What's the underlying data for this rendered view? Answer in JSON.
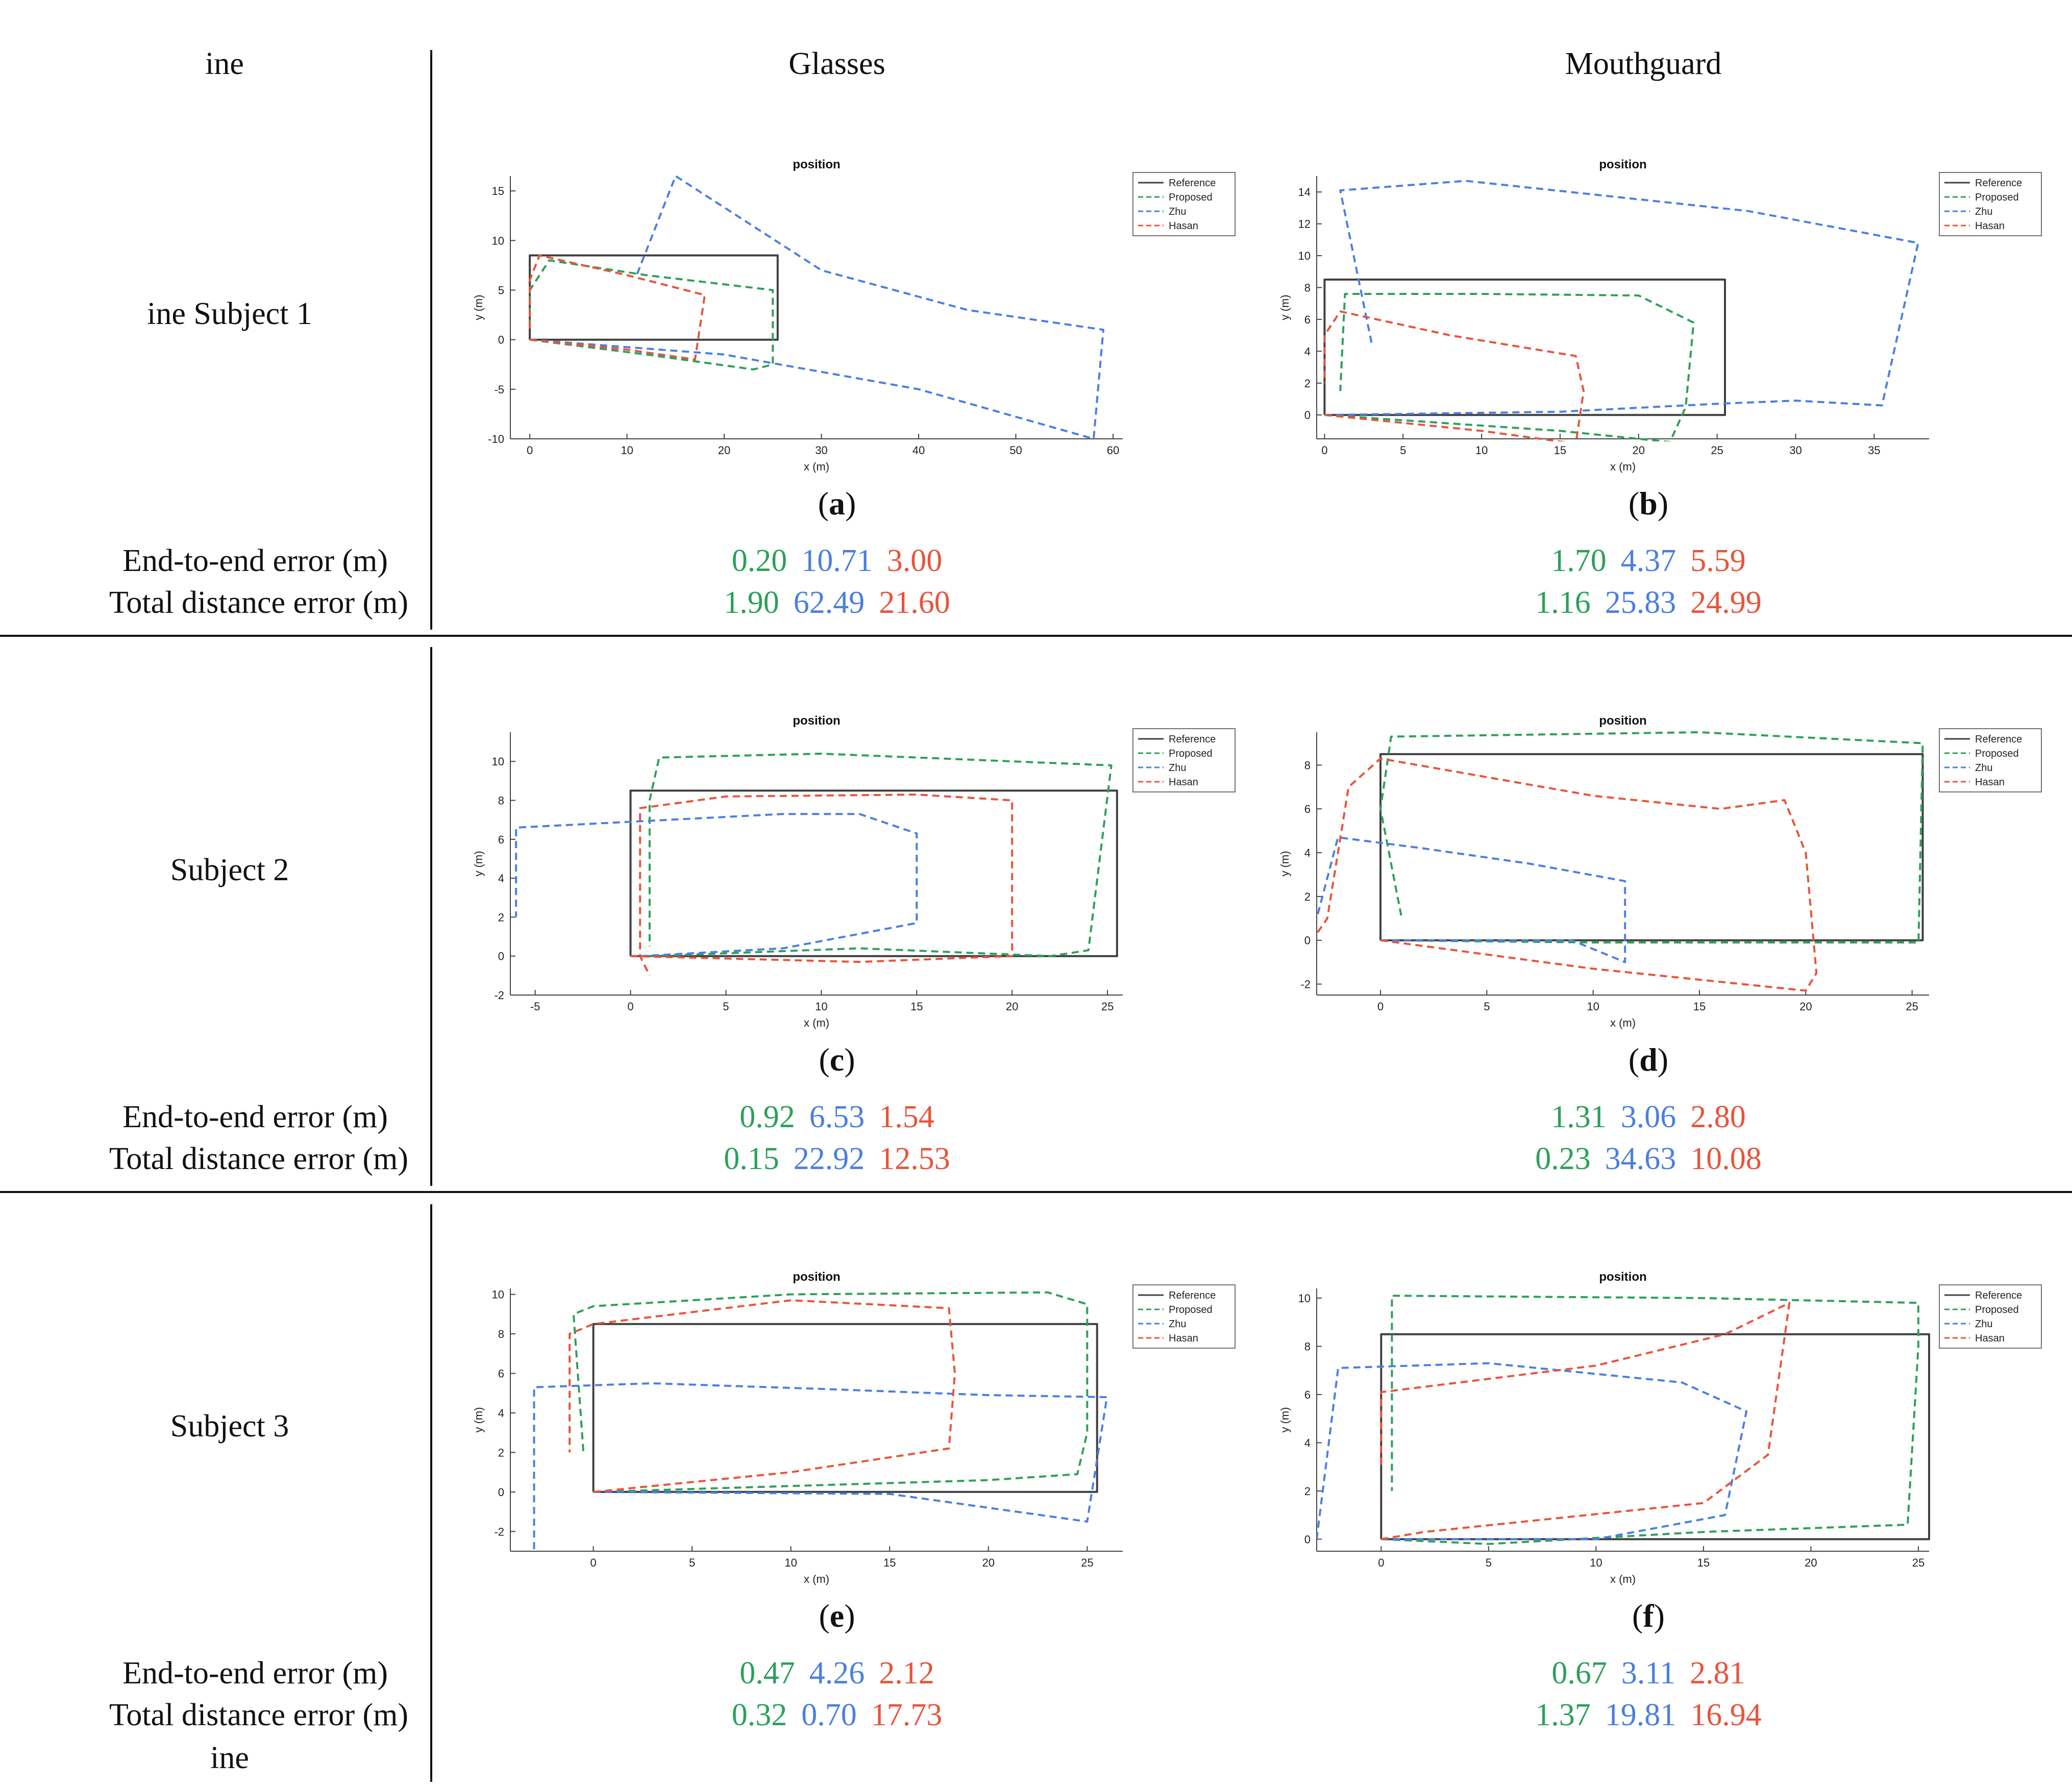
{
  "header": {
    "left": "ine",
    "col1": "Glasses",
    "col2": "Mouthguard"
  },
  "rows": [
    {
      "label": "ine Subject 1"
    },
    {
      "label": "Subject 2"
    },
    {
      "label": "Subject 3"
    }
  ],
  "footer": "ine",
  "metrics": {
    "end_to_end": "End-to-end error (m)",
    "total": "Total distance error (m)"
  },
  "colors": {
    "reference": "#404040",
    "proposed": "#2ca05a",
    "zhu": "#4a7fe0",
    "hasan": "#e8543a"
  },
  "panels": [
    {
      "caption_letter": "a",
      "errors": {
        "e2e": [
          "0.20",
          "10.71",
          "3.00"
        ],
        "total": [
          "1.90",
          "62.49",
          "21.60"
        ]
      }
    },
    {
      "caption_letter": "b",
      "errors": {
        "e2e": [
          "1.70",
          "4.37",
          "5.59"
        ],
        "total": [
          "1.16",
          "25.83",
          "24.99"
        ]
      }
    },
    {
      "caption_letter": "c",
      "errors": {
        "e2e": [
          "0.92",
          "6.53",
          "1.54"
        ],
        "total": [
          "0.15",
          "22.92",
          "12.53"
        ]
      }
    },
    {
      "caption_letter": "d",
      "errors": {
        "e2e": [
          "1.31",
          "3.06",
          "2.80"
        ],
        "total": [
          "0.23",
          "34.63",
          "10.08"
        ]
      }
    },
    {
      "caption_letter": "e",
      "errors": {
        "e2e": [
          "0.47",
          "4.26",
          "2.12"
        ],
        "total": [
          "0.32",
          "0.70",
          "17.73"
        ]
      }
    },
    {
      "caption_letter": "f",
      "errors": {
        "e2e": [
          "0.67",
          "3.11",
          "2.81"
        ],
        "total": [
          "1.37",
          "19.81",
          "16.94"
        ]
      }
    }
  ],
  "chart_data": [
    {
      "type": "line",
      "title": "position",
      "xlabel": "x (m)",
      "ylabel": "y (m)",
      "xlim": [
        -2,
        61
      ],
      "ylim": [
        -10,
        16.5
      ],
      "xticks": [
        0,
        10,
        20,
        30,
        40,
        50,
        60
      ],
      "yticks": [
        -10,
        -5,
        0,
        5,
        10,
        15
      ],
      "legend": "top-right",
      "series": [
        {
          "name": "Reference",
          "style": "solid",
          "points": [
            [
              0,
              0
            ],
            [
              25.5,
              0
            ],
            [
              25.5,
              8.5
            ],
            [
              0,
              8.5
            ],
            [
              0,
              0
            ]
          ]
        },
        {
          "name": "Proposed",
          "style": "dashed",
          "points": [
            [
              0,
              0
            ],
            [
              12,
              -1.5
            ],
            [
              23,
              -3
            ],
            [
              25,
              -2.5
            ],
            [
              25,
              5
            ],
            [
              12,
              6.5
            ],
            [
              2,
              8
            ],
            [
              0,
              5
            ],
            [
              0,
              1
            ]
          ]
        },
        {
          "name": "Zhu",
          "style": "dashed",
          "points": [
            [
              0,
              0
            ],
            [
              20,
              -1.5
            ],
            [
              40,
              -5
            ],
            [
              58,
              -10
            ],
            [
              59,
              1
            ],
            [
              45,
              3
            ],
            [
              30,
              7
            ],
            [
              15,
              16.5
            ],
            [
              11,
              6.5
            ]
          ]
        },
        {
          "name": "Hasan",
          "style": "dashed",
          "points": [
            [
              0,
              0
            ],
            [
              10,
              -1
            ],
            [
              17,
              -2
            ],
            [
              18,
              4.5
            ],
            [
              10,
              6.5
            ],
            [
              1,
              8.5
            ],
            [
              0,
              6
            ],
            [
              0,
              1
            ]
          ]
        }
      ]
    },
    {
      "type": "line",
      "title": "position",
      "xlabel": "x (m)",
      "ylabel": "y (m)",
      "xlim": [
        -0.5,
        38.5
      ],
      "ylim": [
        -1.5,
        15
      ],
      "xticks": [
        0,
        5,
        10,
        15,
        20,
        25,
        30,
        35
      ],
      "yticks": [
        0,
        2,
        4,
        6,
        8,
        10,
        12,
        14
      ],
      "legend": "top-right",
      "series": [
        {
          "name": "Reference",
          "style": "solid",
          "points": [
            [
              0,
              0
            ],
            [
              25.5,
              0
            ],
            [
              25.5,
              8.5
            ],
            [
              0,
              8.5
            ],
            [
              0,
              0
            ]
          ]
        },
        {
          "name": "Proposed",
          "style": "dashed",
          "points": [
            [
              0,
              0
            ],
            [
              15,
              -1
            ],
            [
              22,
              -1.7
            ],
            [
              23,
              0.5
            ],
            [
              23.5,
              5.8
            ],
            [
              20,
              7.5
            ],
            [
              10,
              7.6
            ],
            [
              1.3,
              7.6
            ],
            [
              1,
              1.5
            ]
          ]
        },
        {
          "name": "Zhu",
          "style": "dashed",
          "points": [
            [
              0,
              0
            ],
            [
              15,
              0.2
            ],
            [
              25,
              0.7
            ],
            [
              30,
              0.9
            ],
            [
              35.5,
              0.6
            ],
            [
              37.8,
              10.8
            ],
            [
              27,
              12.8
            ],
            [
              9,
              14.7
            ],
            [
              1,
              14.1
            ],
            [
              3,
              4.5
            ]
          ]
        },
        {
          "name": "Hasan",
          "style": "dashed",
          "points": [
            [
              0,
              0
            ],
            [
              10,
              -1
            ],
            [
              16,
              -1.8
            ],
            [
              16.5,
              1.5
            ],
            [
              16,
              3.7
            ],
            [
              8,
              5
            ],
            [
              1,
              6.5
            ],
            [
              0,
              5
            ],
            [
              0,
              2
            ]
          ]
        }
      ]
    },
    {
      "type": "line",
      "title": "position",
      "xlabel": "x (m)",
      "ylabel": "y (m)",
      "xlim": [
        -6.3,
        25.8
      ],
      "ylim": [
        -2,
        11.5
      ],
      "xticks": [
        -5,
        0,
        5,
        10,
        15,
        20,
        25
      ],
      "yticks": [
        -2,
        0,
        2,
        4,
        6,
        8,
        10
      ],
      "legend": "top-right",
      "series": [
        {
          "name": "Reference",
          "style": "solid",
          "points": [
            [
              0,
              0
            ],
            [
              25.5,
              0
            ],
            [
              25.5,
              8.5
            ],
            [
              0,
              8.5
            ],
            [
              0,
              0
            ]
          ]
        },
        {
          "name": "Proposed",
          "style": "dashed",
          "points": [
            [
              1,
              0
            ],
            [
              12,
              0.4
            ],
            [
              22,
              0
            ],
            [
              24,
              0.3
            ],
            [
              25.2,
              9.8
            ],
            [
              10,
              10.4
            ],
            [
              1.5,
              10.2
            ],
            [
              1,
              8
            ],
            [
              1,
              0.5
            ]
          ]
        },
        {
          "name": "Zhu",
          "style": "dashed",
          "points": [
            [
              0.5,
              0
            ],
            [
              8,
              0.4
            ],
            [
              15,
              1.7
            ],
            [
              15,
              6.3
            ],
            [
              12,
              7.3
            ],
            [
              8,
              7.3
            ],
            [
              -6,
              6.6
            ],
            [
              -6,
              2
            ]
          ]
        },
        {
          "name": "Hasan",
          "style": "dashed",
          "points": [
            [
              0,
              0
            ],
            [
              12,
              -0.3
            ],
            [
              20,
              0
            ],
            [
              20,
              8
            ],
            [
              15,
              8.3
            ],
            [
              5,
              8.2
            ],
            [
              0.5,
              7.6
            ],
            [
              0.5,
              0
            ],
            [
              1,
              -1
            ]
          ]
        }
      ]
    },
    {
      "type": "line",
      "title": "position",
      "xlabel": "x (m)",
      "ylabel": "y (m)",
      "xlim": [
        -3,
        25.8
      ],
      "ylim": [
        -2.5,
        9.5
      ],
      "xticks": [
        0,
        5,
        10,
        15,
        20,
        25
      ],
      "yticks": [
        -2,
        0,
        2,
        4,
        6,
        8
      ],
      "legend": "top-right",
      "series": [
        {
          "name": "Reference",
          "style": "solid",
          "points": [
            [
              0,
              0
            ],
            [
              25.5,
              0
            ],
            [
              25.5,
              8.5
            ],
            [
              0,
              8.5
            ],
            [
              0,
              0
            ]
          ]
        },
        {
          "name": "Proposed",
          "style": "dashed",
          "points": [
            [
              0,
              0
            ],
            [
              10,
              -0.1
            ],
            [
              25.3,
              -0.1
            ],
            [
              25.5,
              9
            ],
            [
              15,
              9.5
            ],
            [
              0.5,
              9.3
            ],
            [
              0,
              6
            ],
            [
              1,
              1
            ]
          ]
        },
        {
          "name": "Zhu",
          "style": "dashed",
          "points": [
            [
              0,
              0
            ],
            [
              9,
              0
            ],
            [
              11.5,
              -1
            ],
            [
              11.5,
              2.7
            ],
            [
              7,
              3.5
            ],
            [
              2,
              4.2
            ],
            [
              -2,
              4.7
            ],
            [
              -3,
              1
            ]
          ]
        },
        {
          "name": "Hasan",
          "style": "dashed",
          "points": [
            [
              0,
              0
            ],
            [
              10,
              -1.3
            ],
            [
              20,
              -2.3
            ],
            [
              20.5,
              -1.5
            ],
            [
              20,
              4
            ],
            [
              19,
              6.4
            ],
            [
              16,
              6
            ],
            [
              10,
              6.6
            ],
            [
              0,
              8.3
            ],
            [
              -1.5,
              7
            ],
            [
              -2.5,
              1
            ],
            [
              -3,
              0.3
            ]
          ]
        }
      ]
    },
    {
      "type": "line",
      "title": "position",
      "xlabel": "x (m)",
      "ylabel": "y (m)",
      "xlim": [
        -4.2,
        26.8
      ],
      "ylim": [
        -3,
        10.3
      ],
      "xticks": [
        0,
        5,
        10,
        15,
        20,
        25
      ],
      "yticks": [
        -2,
        0,
        2,
        4,
        6,
        8,
        10
      ],
      "legend": "top-right",
      "series": [
        {
          "name": "Reference",
          "style": "solid",
          "points": [
            [
              0,
              0
            ],
            [
              25.5,
              0
            ],
            [
              25.5,
              8.5
            ],
            [
              0,
              8.5
            ],
            [
              0,
              0
            ]
          ]
        },
        {
          "name": "Proposed",
          "style": "dashed",
          "points": [
            [
              0,
              0
            ],
            [
              20,
              0.6
            ],
            [
              24.5,
              0.9
            ],
            [
              25,
              3
            ],
            [
              25,
              9.5
            ],
            [
              23,
              10.1
            ],
            [
              10,
              10
            ],
            [
              0,
              9.4
            ],
            [
              -1,
              9
            ],
            [
              -0.5,
              2
            ]
          ]
        },
        {
          "name": "Zhu",
          "style": "dashed",
          "points": [
            [
              0,
              0
            ],
            [
              15,
              -0.1
            ],
            [
              25,
              -1.5
            ],
            [
              26,
              4.8
            ],
            [
              20,
              4.9
            ],
            [
              12,
              5.2
            ],
            [
              3,
              5.5
            ],
            [
              -3,
              5.3
            ],
            [
              -3,
              -3
            ]
          ]
        },
        {
          "name": "Hasan",
          "style": "dashed",
          "points": [
            [
              0,
              0
            ],
            [
              10,
              1
            ],
            [
              18,
              2.2
            ],
            [
              18.3,
              6
            ],
            [
              18,
              9.3
            ],
            [
              10,
              9.7
            ],
            [
              0,
              8.5
            ],
            [
              -1.2,
              8
            ],
            [
              -1.2,
              2
            ]
          ]
        }
      ]
    },
    {
      "type": "line",
      "title": "position",
      "xlabel": "x (m)",
      "ylabel": "y (m)",
      "xlim": [
        -3,
        25.5
      ],
      "ylim": [
        -0.5,
        10.4
      ],
      "xticks": [
        0,
        5,
        10,
        15,
        20,
        25
      ],
      "yticks": [
        0,
        2,
        4,
        6,
        8,
        10
      ],
      "legend": "top-right",
      "series": [
        {
          "name": "Reference",
          "style": "solid",
          "points": [
            [
              0,
              0
            ],
            [
              25.5,
              0
            ],
            [
              25.5,
              8.5
            ],
            [
              0,
              8.5
            ],
            [
              0,
              0
            ]
          ]
        },
        {
          "name": "Proposed",
          "style": "dashed",
          "points": [
            [
              0,
              0
            ],
            [
              5,
              -0.2
            ],
            [
              15,
              0.3
            ],
            [
              24.5,
              0.6
            ],
            [
              25,
              8
            ],
            [
              25,
              9.8
            ],
            [
              15,
              10
            ],
            [
              0.5,
              10.1
            ],
            [
              0.5,
              2
            ]
          ]
        },
        {
          "name": "Zhu",
          "style": "dashed",
          "points": [
            [
              0,
              0
            ],
            [
              10,
              0
            ],
            [
              16,
              1
            ],
            [
              17,
              5.3
            ],
            [
              14,
              6.5
            ],
            [
              5,
              7.3
            ],
            [
              -2,
              7.1
            ],
            [
              -3,
              0
            ]
          ]
        },
        {
          "name": "Hasan",
          "style": "dashed",
          "points": [
            [
              0,
              0
            ],
            [
              2,
              0.3
            ],
            [
              15,
              1.5
            ],
            [
              18,
              3.5
            ],
            [
              19,
              9.8
            ],
            [
              16,
              8.5
            ],
            [
              10,
              7.2
            ],
            [
              0,
              6.1
            ],
            [
              0,
              3
            ]
          ]
        }
      ]
    }
  ]
}
